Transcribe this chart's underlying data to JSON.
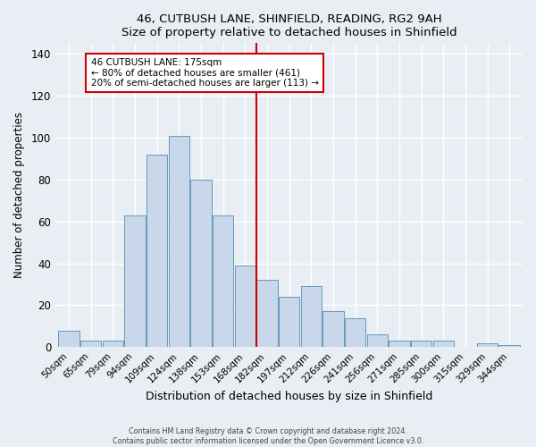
{
  "title": "46, CUTBUSH LANE, SHINFIELD, READING, RG2 9AH",
  "subtitle": "Size of property relative to detached houses in Shinfield",
  "xlabel": "Distribution of detached houses by size in Shinfield",
  "ylabel": "Number of detached properties",
  "bar_labels": [
    "50sqm",
    "65sqm",
    "79sqm",
    "94sqm",
    "109sqm",
    "124sqm",
    "138sqm",
    "153sqm",
    "168sqm",
    "182sqm",
    "197sqm",
    "212sqm",
    "226sqm",
    "241sqm",
    "256sqm",
    "271sqm",
    "285sqm",
    "300sqm",
    "315sqm",
    "329sqm",
    "344sqm"
  ],
  "bar_values": [
    8,
    3,
    3,
    63,
    92,
    101,
    80,
    63,
    39,
    32,
    24,
    29,
    17,
    14,
    6,
    3,
    3,
    3,
    0,
    2,
    1
  ],
  "bar_color": "#c8d8ea",
  "bar_edge_color": "#6699bb",
  "ylim": [
    0,
    145
  ],
  "yticks": [
    0,
    20,
    40,
    60,
    80,
    100,
    120,
    140
  ],
  "vline_x_idx": 9,
  "vline_color": "#cc0000",
  "annotation_title": "46 CUTBUSH LANE: 175sqm",
  "annotation_line1": "← 80% of detached houses are smaller (461)",
  "annotation_line2": "20% of semi-detached houses are larger (113) →",
  "annotation_box_color": "#cc0000",
  "background_color": "#e8eef4",
  "grid_color": "#ffffff",
  "footer_line1": "Contains HM Land Registry data © Crown copyright and database right 2024.",
  "footer_line2": "Contains public sector information licensed under the Open Government Licence v3.0."
}
